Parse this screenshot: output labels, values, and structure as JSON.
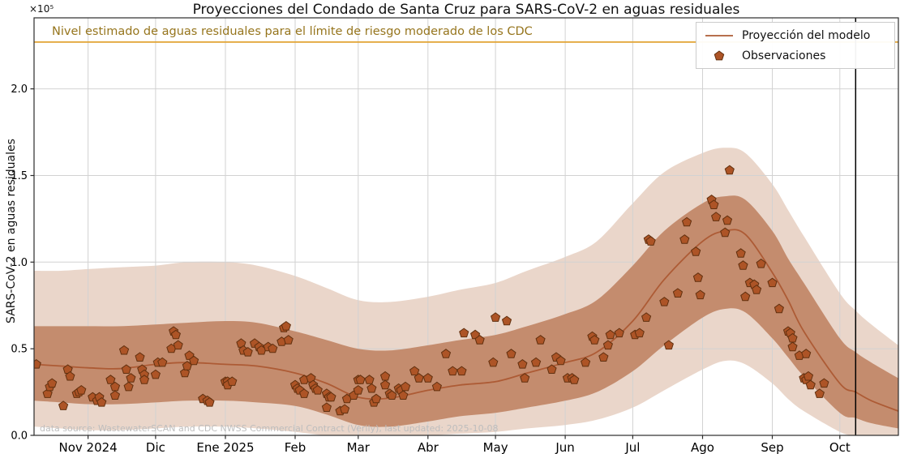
{
  "source_note": "data source: WastewaterSCAN and CDC NWSS Commercial Contract (Verily), last updated: 2025-10-08",
  "current_date_line": "2025-10-08",
  "legend": {
    "model_label": "Proyección del modelo",
    "obs_label": "Observaciones"
  },
  "y_axis": {
    "offset_label": "×10⁵",
    "ticks": [
      0.0,
      0.5,
      1.0,
      1.5,
      2.0
    ],
    "max": 2.41
  },
  "x_axis": {
    "start": "2024-10-08",
    "end": "2025-10-27",
    "ticks": [
      {
        "date": "2024-11-01",
        "label": "Nov 2024"
      },
      {
        "date": "2024-12-01",
        "label": "Dic"
      },
      {
        "date": "2025-01-01",
        "label": "Ene 2025"
      },
      {
        "date": "2025-02-01",
        "label": "Feb"
      },
      {
        "date": "2025-03-01",
        "label": "Mar"
      },
      {
        "date": "2025-04-01",
        "label": "Abr"
      },
      {
        "date": "2025-05-01",
        "label": "May"
      },
      {
        "date": "2025-06-01",
        "label": "Jun"
      },
      {
        "date": "2025-07-01",
        "label": "Jul"
      },
      {
        "date": "2025-08-01",
        "label": "Ago"
      },
      {
        "date": "2025-09-01",
        "label": "Sep"
      },
      {
        "date": "2025-10-01",
        "label": "Oct"
      }
    ]
  },
  "colors": {
    "model_line": "#ad5b35",
    "inner_band": "#c48c6e",
    "outer_band": "#ead6ca",
    "observation_fill": "#ad5426",
    "observation_edge": "#61300f",
    "threshold_line": "#e2a433",
    "threshold_text": "#96751d",
    "grid": "#d2d2d2",
    "spine": "#2b2b2b",
    "today_line": "#000000",
    "source_text": "#bdbdbd",
    "tick_text": "#000000"
  },
  "chart_data": {
    "type": "line",
    "title": "Proyecciones del Condado de Santa Cruz para SARS-CoV-2 en aguas residuales",
    "xlabel": "",
    "ylabel": "SARS-CoV-2 en aguas residuales",
    "y_unit_multiplier": 100000,
    "ylim": [
      0,
      2.41
    ],
    "grid": true,
    "legend_position": "upper right",
    "threshold_line": {
      "y": 2.27,
      "label": "Nivel estimado de aguas residuales para el límite de riesgo moderado de los CDC"
    },
    "x": [
      "2024-10-08",
      "2024-10-20",
      "2024-11-01",
      "2024-11-15",
      "2024-12-01",
      "2024-12-15",
      "2025-01-01",
      "2025-01-15",
      "2025-02-01",
      "2025-02-15",
      "2025-03-01",
      "2025-03-15",
      "2025-04-01",
      "2025-04-15",
      "2025-05-01",
      "2025-05-15",
      "2025-06-01",
      "2025-06-15",
      "2025-07-01",
      "2025-07-15",
      "2025-08-01",
      "2025-08-11",
      "2025-08-20",
      "2025-09-01",
      "2025-09-08",
      "2025-09-15",
      "2025-10-01",
      "2025-10-08",
      "2025-10-15",
      "2025-10-27"
    ],
    "series": [
      {
        "name": "Proyección del modelo",
        "type": "line",
        "y": [
          0.41,
          0.4,
          0.39,
          0.385,
          0.41,
          0.42,
          0.41,
          0.4,
          0.36,
          0.3,
          0.22,
          0.215,
          0.26,
          0.29,
          0.31,
          0.36,
          0.42,
          0.48,
          0.66,
          0.9,
          1.12,
          1.18,
          1.16,
          0.94,
          0.78,
          0.6,
          0.3,
          0.25,
          0.2,
          0.14
        ]
      },
      {
        "name": "Intervalo interior",
        "type": "band",
        "lo": [
          0.2,
          0.19,
          0.18,
          0.18,
          0.19,
          0.2,
          0.2,
          0.19,
          0.17,
          0.12,
          0.06,
          0.05,
          0.08,
          0.11,
          0.13,
          0.16,
          0.2,
          0.25,
          0.37,
          0.52,
          0.68,
          0.73,
          0.71,
          0.56,
          0.45,
          0.34,
          0.13,
          0.1,
          0.07,
          0.04
        ],
        "hi": [
          0.63,
          0.63,
          0.63,
          0.63,
          0.64,
          0.65,
          0.66,
          0.65,
          0.6,
          0.55,
          0.5,
          0.49,
          0.52,
          0.55,
          0.58,
          0.63,
          0.7,
          0.78,
          0.98,
          1.18,
          1.34,
          1.38,
          1.36,
          1.18,
          1.02,
          0.88,
          0.56,
          0.48,
          0.42,
          0.33
        ]
      },
      {
        "name": "Intervalo exterior",
        "type": "band",
        "lo": [
          0.05,
          0.04,
          0.03,
          0.03,
          0.04,
          0.05,
          0.05,
          0.04,
          0.02,
          0.0,
          0.0,
          0.0,
          0.0,
          0.01,
          0.02,
          0.04,
          0.06,
          0.09,
          0.16,
          0.26,
          0.38,
          0.43,
          0.41,
          0.3,
          0.21,
          0.14,
          0.02,
          0.0,
          0.0,
          0.0
        ],
        "hi": [
          0.95,
          0.95,
          0.96,
          0.97,
          0.98,
          1.0,
          1.0,
          0.98,
          0.92,
          0.85,
          0.78,
          0.77,
          0.8,
          0.84,
          0.88,
          0.95,
          1.03,
          1.12,
          1.34,
          1.52,
          1.63,
          1.66,
          1.63,
          1.45,
          1.3,
          1.15,
          0.82,
          0.72,
          0.64,
          0.52
        ]
      },
      {
        "name": "Observaciones",
        "type": "scatter",
        "points": [
          [
            "2024-10-09",
            0.41
          ],
          [
            "2024-10-14",
            0.24
          ],
          [
            "2024-10-15",
            0.28
          ],
          [
            "2024-10-16",
            0.3
          ],
          [
            "2024-10-21",
            0.17
          ],
          [
            "2024-10-23",
            0.38
          ],
          [
            "2024-10-24",
            0.34
          ],
          [
            "2024-10-27",
            0.24
          ],
          [
            "2024-10-28",
            0.25
          ],
          [
            "2024-10-29",
            0.26
          ],
          [
            "2024-11-03",
            0.22
          ],
          [
            "2024-11-05",
            0.2
          ],
          [
            "2024-11-06",
            0.22
          ],
          [
            "2024-11-07",
            0.19
          ],
          [
            "2024-11-11",
            0.32
          ],
          [
            "2024-11-13",
            0.28
          ],
          [
            "2024-11-13",
            0.23
          ],
          [
            "2024-11-17",
            0.49
          ],
          [
            "2024-11-18",
            0.38
          ],
          [
            "2024-11-19",
            0.28
          ],
          [
            "2024-11-20",
            0.33
          ],
          [
            "2024-11-24",
            0.45
          ],
          [
            "2024-11-25",
            0.38
          ],
          [
            "2024-11-26",
            0.35
          ],
          [
            "2024-11-26",
            0.32
          ],
          [
            "2024-12-01",
            0.35
          ],
          [
            "2024-12-02",
            0.42
          ],
          [
            "2024-12-04",
            0.42
          ],
          [
            "2024-12-08",
            0.5
          ],
          [
            "2024-12-09",
            0.6
          ],
          [
            "2024-12-10",
            0.58
          ],
          [
            "2024-12-11",
            0.52
          ],
          [
            "2024-12-14",
            0.36
          ],
          [
            "2024-12-15",
            0.4
          ],
          [
            "2024-12-16",
            0.46
          ],
          [
            "2024-12-18",
            0.43
          ],
          [
            "2024-12-22",
            0.21
          ],
          [
            "2024-12-24",
            0.2
          ],
          [
            "2024-12-25",
            0.19
          ],
          [
            "2025-01-01",
            0.31
          ],
          [
            "2025-01-02",
            0.31
          ],
          [
            "2025-01-02",
            0.29
          ],
          [
            "2025-01-04",
            0.31
          ],
          [
            "2025-01-08",
            0.53
          ],
          [
            "2025-01-09",
            0.49
          ],
          [
            "2025-01-11",
            0.48
          ],
          [
            "2025-01-14",
            0.53
          ],
          [
            "2025-01-16",
            0.51
          ],
          [
            "2025-01-17",
            0.49
          ],
          [
            "2025-01-20",
            0.51
          ],
          [
            "2025-01-22",
            0.5
          ],
          [
            "2025-01-26",
            0.54
          ],
          [
            "2025-01-27",
            0.62
          ],
          [
            "2025-01-28",
            0.63
          ],
          [
            "2025-01-29",
            0.55
          ],
          [
            "2025-02-01",
            0.29
          ],
          [
            "2025-02-02",
            0.27
          ],
          [
            "2025-02-03",
            0.26
          ],
          [
            "2025-02-05",
            0.32
          ],
          [
            "2025-02-05",
            0.24
          ],
          [
            "2025-02-08",
            0.33
          ],
          [
            "2025-02-09",
            0.29
          ],
          [
            "2025-02-10",
            0.27
          ],
          [
            "2025-02-11",
            0.26
          ],
          [
            "2025-02-15",
            0.24
          ],
          [
            "2025-02-15",
            0.16
          ],
          [
            "2025-02-16",
            0.22
          ],
          [
            "2025-02-17",
            0.22
          ],
          [
            "2025-02-21",
            0.14
          ],
          [
            "2025-02-23",
            0.15
          ],
          [
            "2025-02-24",
            0.21
          ],
          [
            "2025-02-27",
            0.23
          ],
          [
            "2025-03-01",
            0.26
          ],
          [
            "2025-03-01",
            0.32
          ],
          [
            "2025-03-02",
            0.32
          ],
          [
            "2025-03-06",
            0.32
          ],
          [
            "2025-03-07",
            0.27
          ],
          [
            "2025-03-08",
            0.19
          ],
          [
            "2025-03-09",
            0.21
          ],
          [
            "2025-03-13",
            0.34
          ],
          [
            "2025-03-13",
            0.29
          ],
          [
            "2025-03-15",
            0.24
          ],
          [
            "2025-03-16",
            0.23
          ],
          [
            "2025-03-19",
            0.27
          ],
          [
            "2025-03-20",
            0.26
          ],
          [
            "2025-03-21",
            0.23
          ],
          [
            "2025-03-22",
            0.28
          ],
          [
            "2025-03-26",
            0.37
          ],
          [
            "2025-03-28",
            0.33
          ],
          [
            "2025-04-01",
            0.33
          ],
          [
            "2025-04-05",
            0.28
          ],
          [
            "2025-04-09",
            0.47
          ],
          [
            "2025-04-12",
            0.37
          ],
          [
            "2025-04-16",
            0.37
          ],
          [
            "2025-04-17",
            0.59
          ],
          [
            "2025-04-22",
            0.58
          ],
          [
            "2025-04-24",
            0.55
          ],
          [
            "2025-04-30",
            0.42
          ],
          [
            "2025-05-01",
            0.68
          ],
          [
            "2025-05-06",
            0.66
          ],
          [
            "2025-05-08",
            0.47
          ],
          [
            "2025-05-13",
            0.41
          ],
          [
            "2025-05-14",
            0.33
          ],
          [
            "2025-05-19",
            0.42
          ],
          [
            "2025-05-21",
            0.55
          ],
          [
            "2025-05-26",
            0.38
          ],
          [
            "2025-05-28",
            0.45
          ],
          [
            "2025-05-30",
            0.43
          ],
          [
            "2025-06-02",
            0.33
          ],
          [
            "2025-06-04",
            0.33
          ],
          [
            "2025-06-05",
            0.32
          ],
          [
            "2025-06-10",
            0.42
          ],
          [
            "2025-06-13",
            0.57
          ],
          [
            "2025-06-14",
            0.55
          ],
          [
            "2025-06-18",
            0.45
          ],
          [
            "2025-06-20",
            0.52
          ],
          [
            "2025-06-21",
            0.58
          ],
          [
            "2025-06-25",
            0.59
          ],
          [
            "2025-07-02",
            0.58
          ],
          [
            "2025-07-04",
            0.59
          ],
          [
            "2025-07-07",
            0.68
          ],
          [
            "2025-07-08",
            1.13
          ],
          [
            "2025-07-09",
            1.12
          ],
          [
            "2025-07-15",
            0.77
          ],
          [
            "2025-07-17",
            0.52
          ],
          [
            "2025-07-21",
            0.82
          ],
          [
            "2025-07-24",
            1.13
          ],
          [
            "2025-07-25",
            1.23
          ],
          [
            "2025-07-29",
            1.06
          ],
          [
            "2025-07-30",
            0.91
          ],
          [
            "2025-07-31",
            0.81
          ],
          [
            "2025-08-05",
            1.36
          ],
          [
            "2025-08-06",
            1.33
          ],
          [
            "2025-08-07",
            1.26
          ],
          [
            "2025-08-11",
            1.17
          ],
          [
            "2025-08-12",
            1.24
          ],
          [
            "2025-08-13",
            1.53
          ],
          [
            "2025-08-18",
            1.05
          ],
          [
            "2025-08-19",
            0.98
          ],
          [
            "2025-08-20",
            0.8
          ],
          [
            "2025-08-22",
            0.88
          ],
          [
            "2025-08-24",
            0.87
          ],
          [
            "2025-08-25",
            0.84
          ],
          [
            "2025-08-27",
            0.99
          ],
          [
            "2025-09-01",
            0.88
          ],
          [
            "2025-09-04",
            0.73
          ],
          [
            "2025-09-08",
            0.6
          ],
          [
            "2025-09-09",
            0.59
          ],
          [
            "2025-09-10",
            0.56
          ],
          [
            "2025-09-10",
            0.51
          ],
          [
            "2025-09-13",
            0.46
          ],
          [
            "2025-09-15",
            0.33
          ],
          [
            "2025-09-16",
            0.47
          ],
          [
            "2025-09-16",
            0.32
          ],
          [
            "2025-09-17",
            0.34
          ],
          [
            "2025-09-18",
            0.29
          ],
          [
            "2025-09-22",
            0.24
          ],
          [
            "2025-09-24",
            0.3
          ]
        ]
      }
    ]
  }
}
